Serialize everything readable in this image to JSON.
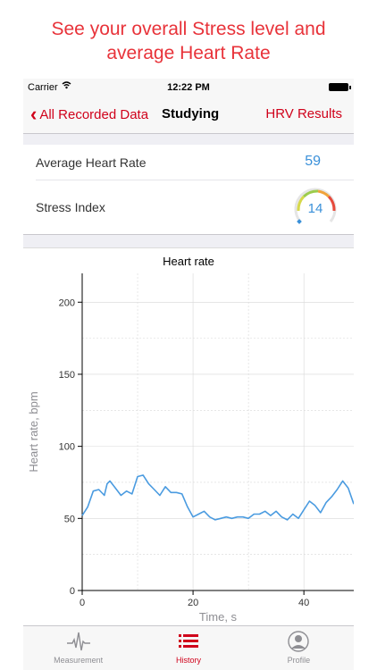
{
  "promo": {
    "line1": "See your overall Stress level and",
    "line2": "average Heart Rate"
  },
  "status": {
    "carrier": "Carrier",
    "time": "12:22 PM"
  },
  "nav": {
    "back_label": "All Recorded Data",
    "title": "Studying",
    "right_label": "HRV Results"
  },
  "metrics": {
    "avg_hr_label": "Average Heart Rate",
    "avg_hr_value": "59",
    "stress_label": "Stress Index",
    "stress_value": "14"
  },
  "colors": {
    "accent": "#d0021b",
    "value_blue": "#3a90d9",
    "line": "#4a9be0"
  },
  "chart_data": {
    "type": "line",
    "title": "Heart rate",
    "xlabel": "Time, s",
    "ylabel": "Heart rate, bpm",
    "xlim": [
      0,
      49
    ],
    "ylim": [
      0,
      220
    ],
    "xticks": [
      0,
      20,
      40
    ],
    "yticks": [
      0,
      50,
      100,
      150,
      200
    ],
    "grid": true,
    "x": [
      0,
      1,
      2,
      3,
      4,
      4.5,
      5,
      6,
      7,
      8,
      9,
      10,
      11,
      12,
      13,
      14,
      15,
      16,
      17,
      18,
      19,
      20,
      21,
      22,
      23,
      24,
      25,
      26,
      27,
      28,
      29,
      30,
      31,
      32,
      33,
      34,
      35,
      36,
      37,
      38,
      39,
      40,
      41,
      42,
      43,
      44,
      45,
      46,
      47,
      48,
      49
    ],
    "y": [
      52,
      58,
      69,
      70,
      66,
      74,
      76,
      71,
      66,
      69,
      67,
      79,
      80,
      74,
      70,
      66,
      72,
      68,
      68,
      67,
      58,
      51,
      53,
      55,
      51,
      49,
      50,
      51,
      50,
      51,
      51,
      50,
      53,
      53,
      55,
      52,
      55,
      51,
      49,
      53,
      50,
      56,
      62,
      59,
      54,
      61,
      65,
      70,
      76,
      71,
      60
    ]
  },
  "tabs": [
    {
      "label": "Measurement",
      "icon": "heartbeat-icon",
      "active": false
    },
    {
      "label": "History",
      "icon": "list-icon",
      "active": true
    },
    {
      "label": "Profile",
      "icon": "profile-icon",
      "active": false
    }
  ]
}
